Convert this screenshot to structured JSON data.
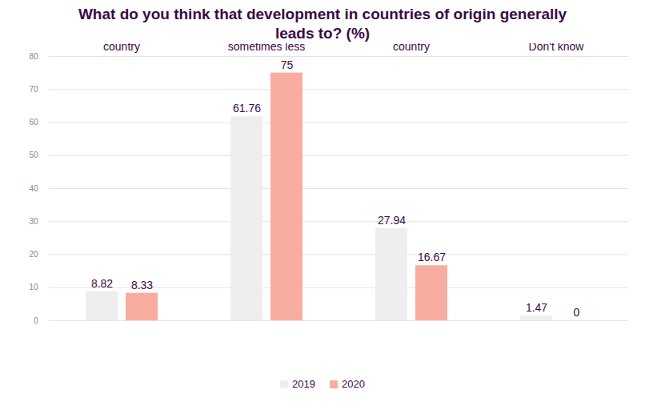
{
  "chart_data": {
    "type": "bar",
    "title": "What do you think that development in countries of origin generally leads to? (%)",
    "categories": [
      "Less migration from the country",
      "It depends, sometimes more migration, sometimes less",
      "More migration from the country",
      "Don't know"
    ],
    "series": [
      {
        "name": "2019",
        "color": "#eeeeee",
        "values": [
          8.82,
          61.76,
          27.94,
          1.47
        ]
      },
      {
        "name": "2020",
        "color": "#f9ada0",
        "values": [
          8.33,
          75,
          16.67,
          0
        ]
      }
    ],
    "ylim": [
      0,
      80
    ],
    "yticks": [
      0,
      10,
      20,
      30,
      40,
      50,
      60,
      70,
      80
    ],
    "grid": true,
    "data_labels": true,
    "legend": "bottom"
  }
}
